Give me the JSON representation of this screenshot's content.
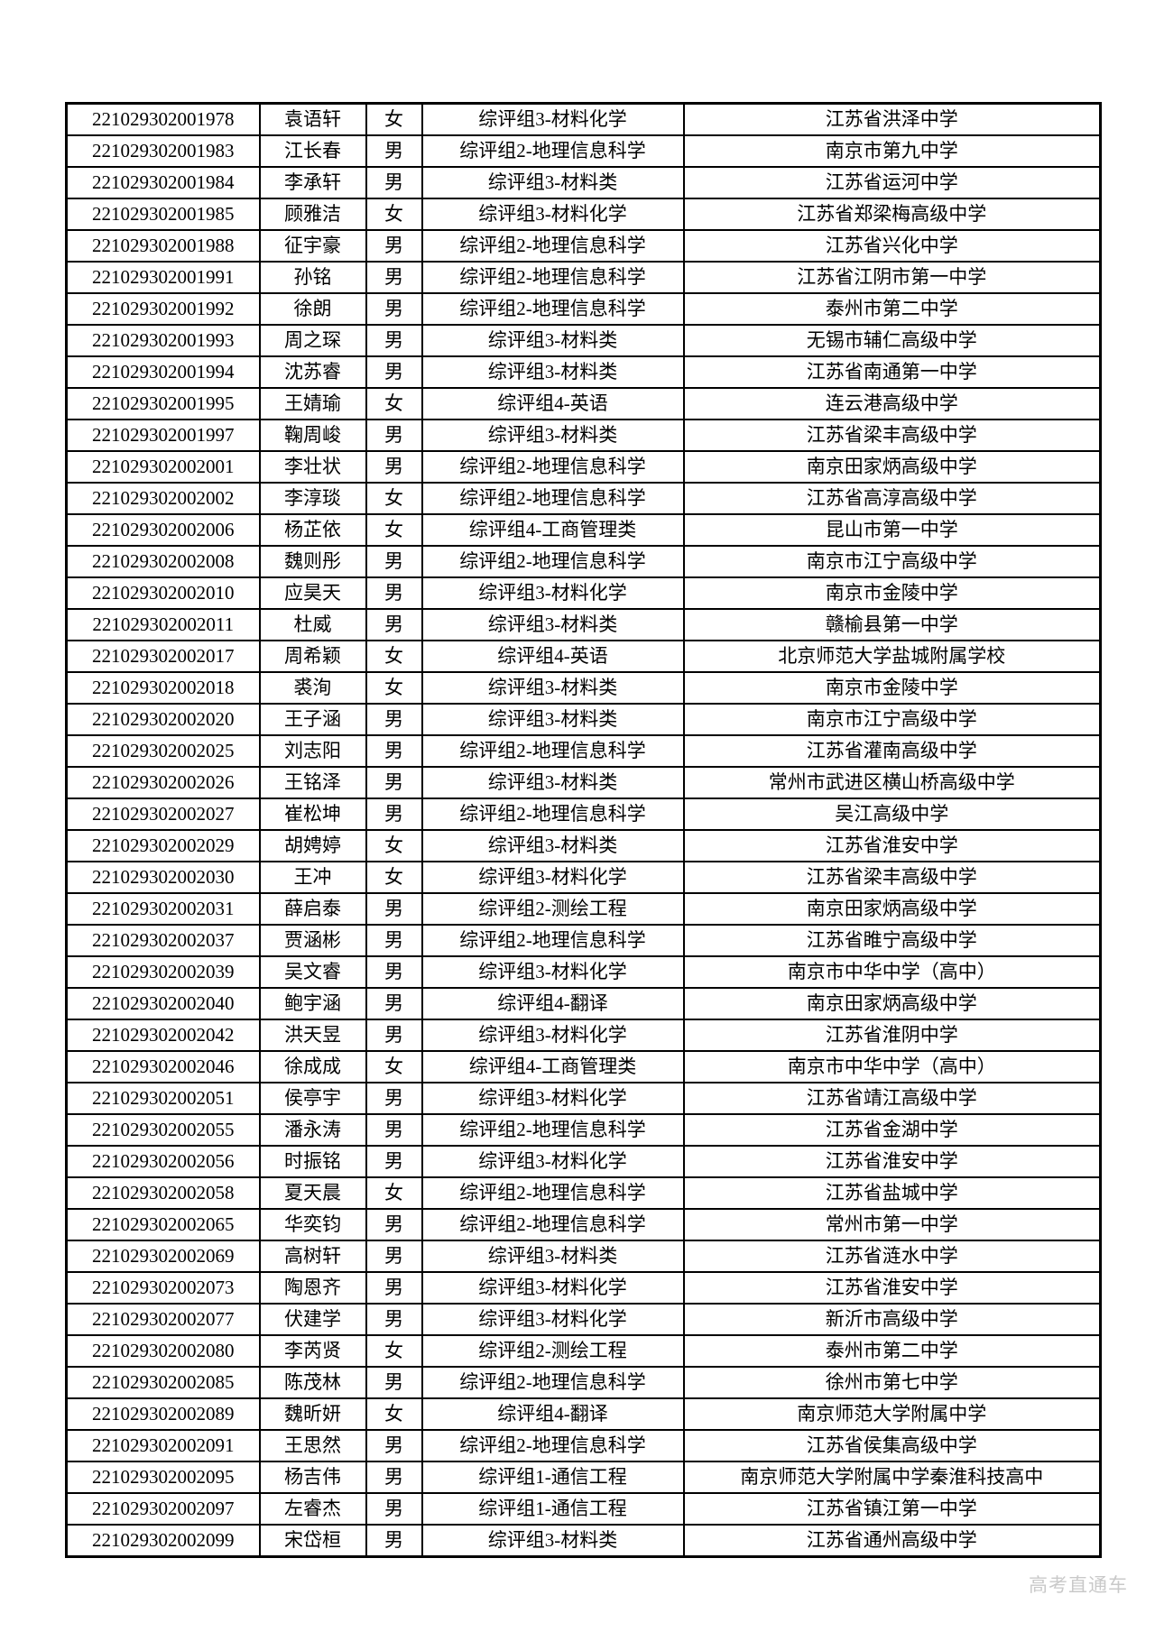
{
  "page": {
    "background": "#ffffff",
    "border_color": "#000000",
    "text_color": "#000000"
  },
  "watermark": {
    "text": "高考直通车",
    "color": "#c9c9c9"
  },
  "table": {
    "columns": [
      "candidate-id",
      "name",
      "gender",
      "eval-group-major",
      "school"
    ],
    "rows": [
      [
        "221029302001978",
        "袁语轩",
        "女",
        "综评组3-材料化学",
        "江苏省洪泽中学"
      ],
      [
        "221029302001983",
        "江长春",
        "男",
        "综评组2-地理信息科学",
        "南京市第九中学"
      ],
      [
        "221029302001984",
        "李承轩",
        "男",
        "综评组3-材料类",
        "江苏省运河中学"
      ],
      [
        "221029302001985",
        "顾雅洁",
        "女",
        "综评组3-材料化学",
        "江苏省郑梁梅高级中学"
      ],
      [
        "221029302001988",
        "征宇豪",
        "男",
        "综评组2-地理信息科学",
        "江苏省兴化中学"
      ],
      [
        "221029302001991",
        "孙铭",
        "男",
        "综评组2-地理信息科学",
        "江苏省江阴市第一中学"
      ],
      [
        "221029302001992",
        "徐朗",
        "男",
        "综评组2-地理信息科学",
        "泰州市第二中学"
      ],
      [
        "221029302001993",
        "周之琛",
        "男",
        "综评组3-材料类",
        "无锡市辅仁高级中学"
      ],
      [
        "221029302001994",
        "沈苏睿",
        "男",
        "综评组3-材料类",
        "江苏省南通第一中学"
      ],
      [
        "221029302001995",
        "王婧瑜",
        "女",
        "综评组4-英语",
        "连云港高级中学"
      ],
      [
        "221029302001997",
        "鞠周峻",
        "男",
        "综评组3-材料类",
        "江苏省梁丰高级中学"
      ],
      [
        "221029302002001",
        "李壮状",
        "男",
        "综评组2-地理信息科学",
        "南京田家炳高级中学"
      ],
      [
        "221029302002002",
        "李淳琰",
        "女",
        "综评组2-地理信息科学",
        "江苏省高淳高级中学"
      ],
      [
        "221029302002006",
        "杨芷依",
        "女",
        "综评组4-工商管理类",
        "昆山市第一中学"
      ],
      [
        "221029302002008",
        "魏则彤",
        "男",
        "综评组2-地理信息科学",
        "南京市江宁高级中学"
      ],
      [
        "221029302002010",
        "应昊天",
        "男",
        "综评组3-材料化学",
        "南京市金陵中学"
      ],
      [
        "221029302002011",
        "杜威",
        "男",
        "综评组3-材料类",
        "赣榆县第一中学"
      ],
      [
        "221029302002017",
        "周希颖",
        "女",
        "综评组4-英语",
        "北京师范大学盐城附属学校"
      ],
      [
        "221029302002018",
        "裘洵",
        "女",
        "综评组3-材料类",
        "南京市金陵中学"
      ],
      [
        "221029302002020",
        "王子涵",
        "男",
        "综评组3-材料类",
        "南京市江宁高级中学"
      ],
      [
        "221029302002025",
        "刘志阳",
        "男",
        "综评组2-地理信息科学",
        "江苏省灌南高级中学"
      ],
      [
        "221029302002026",
        "王铭泽",
        "男",
        "综评组3-材料类",
        "常州市武进区横山桥高级中学"
      ],
      [
        "221029302002027",
        "崔松坤",
        "男",
        "综评组2-地理信息科学",
        "吴江高级中学"
      ],
      [
        "221029302002029",
        "胡娉婷",
        "女",
        "综评组3-材料类",
        "江苏省淮安中学"
      ],
      [
        "221029302002030",
        "王冲",
        "女",
        "综评组3-材料化学",
        "江苏省梁丰高级中学"
      ],
      [
        "221029302002031",
        "薛启泰",
        "男",
        "综评组2-测绘工程",
        "南京田家炳高级中学"
      ],
      [
        "221029302002037",
        "贾涵彬",
        "男",
        "综评组2-地理信息科学",
        "江苏省睢宁高级中学"
      ],
      [
        "221029302002039",
        "吴文睿",
        "男",
        "综评组3-材料化学",
        "南京市中华中学（高中）"
      ],
      [
        "221029302002040",
        "鲍宇涵",
        "男",
        "综评组4-翻译",
        "南京田家炳高级中学"
      ],
      [
        "221029302002042",
        "洪天昱",
        "男",
        "综评组3-材料化学",
        "江苏省淮阴中学"
      ],
      [
        "221029302002046",
        "徐成成",
        "女",
        "综评组4-工商管理类",
        "南京市中华中学（高中）"
      ],
      [
        "221029302002051",
        "侯亭宇",
        "男",
        "综评组3-材料化学",
        "江苏省靖江高级中学"
      ],
      [
        "221029302002055",
        "潘永涛",
        "男",
        "综评组2-地理信息科学",
        "江苏省金湖中学"
      ],
      [
        "221029302002056",
        "时振铭",
        "男",
        "综评组3-材料化学",
        "江苏省淮安中学"
      ],
      [
        "221029302002058",
        "夏天晨",
        "女",
        "综评组2-地理信息科学",
        "江苏省盐城中学"
      ],
      [
        "221029302002065",
        "华奕钧",
        "男",
        "综评组2-地理信息科学",
        "常州市第一中学"
      ],
      [
        "221029302002069",
        "高树轩",
        "男",
        "综评组3-材料类",
        "江苏省涟水中学"
      ],
      [
        "221029302002073",
        "陶恩齐",
        "男",
        "综评组3-材料化学",
        "江苏省淮安中学"
      ],
      [
        "221029302002077",
        "伏建学",
        "男",
        "综评组3-材料化学",
        "新沂市高级中学"
      ],
      [
        "221029302002080",
        "李芮贤",
        "女",
        "综评组2-测绘工程",
        "泰州市第二中学"
      ],
      [
        "221029302002085",
        "陈茂林",
        "男",
        "综评组2-地理信息科学",
        "徐州市第七中学"
      ],
      [
        "221029302002089",
        "魏昕妍",
        "女",
        "综评组4-翻译",
        "南京师范大学附属中学"
      ],
      [
        "221029302002091",
        "王思然",
        "男",
        "综评组2-地理信息科学",
        "江苏省侯集高级中学"
      ],
      [
        "221029302002095",
        "杨吉伟",
        "男",
        "综评组1-通信工程",
        "南京师范大学附属中学秦淮科技高中"
      ],
      [
        "221029302002097",
        "左睿杰",
        "男",
        "综评组1-通信工程",
        "江苏省镇江第一中学"
      ],
      [
        "221029302002099",
        "宋岱桓",
        "男",
        "综评组3-材料类",
        "江苏省通州高级中学"
      ]
    ]
  }
}
